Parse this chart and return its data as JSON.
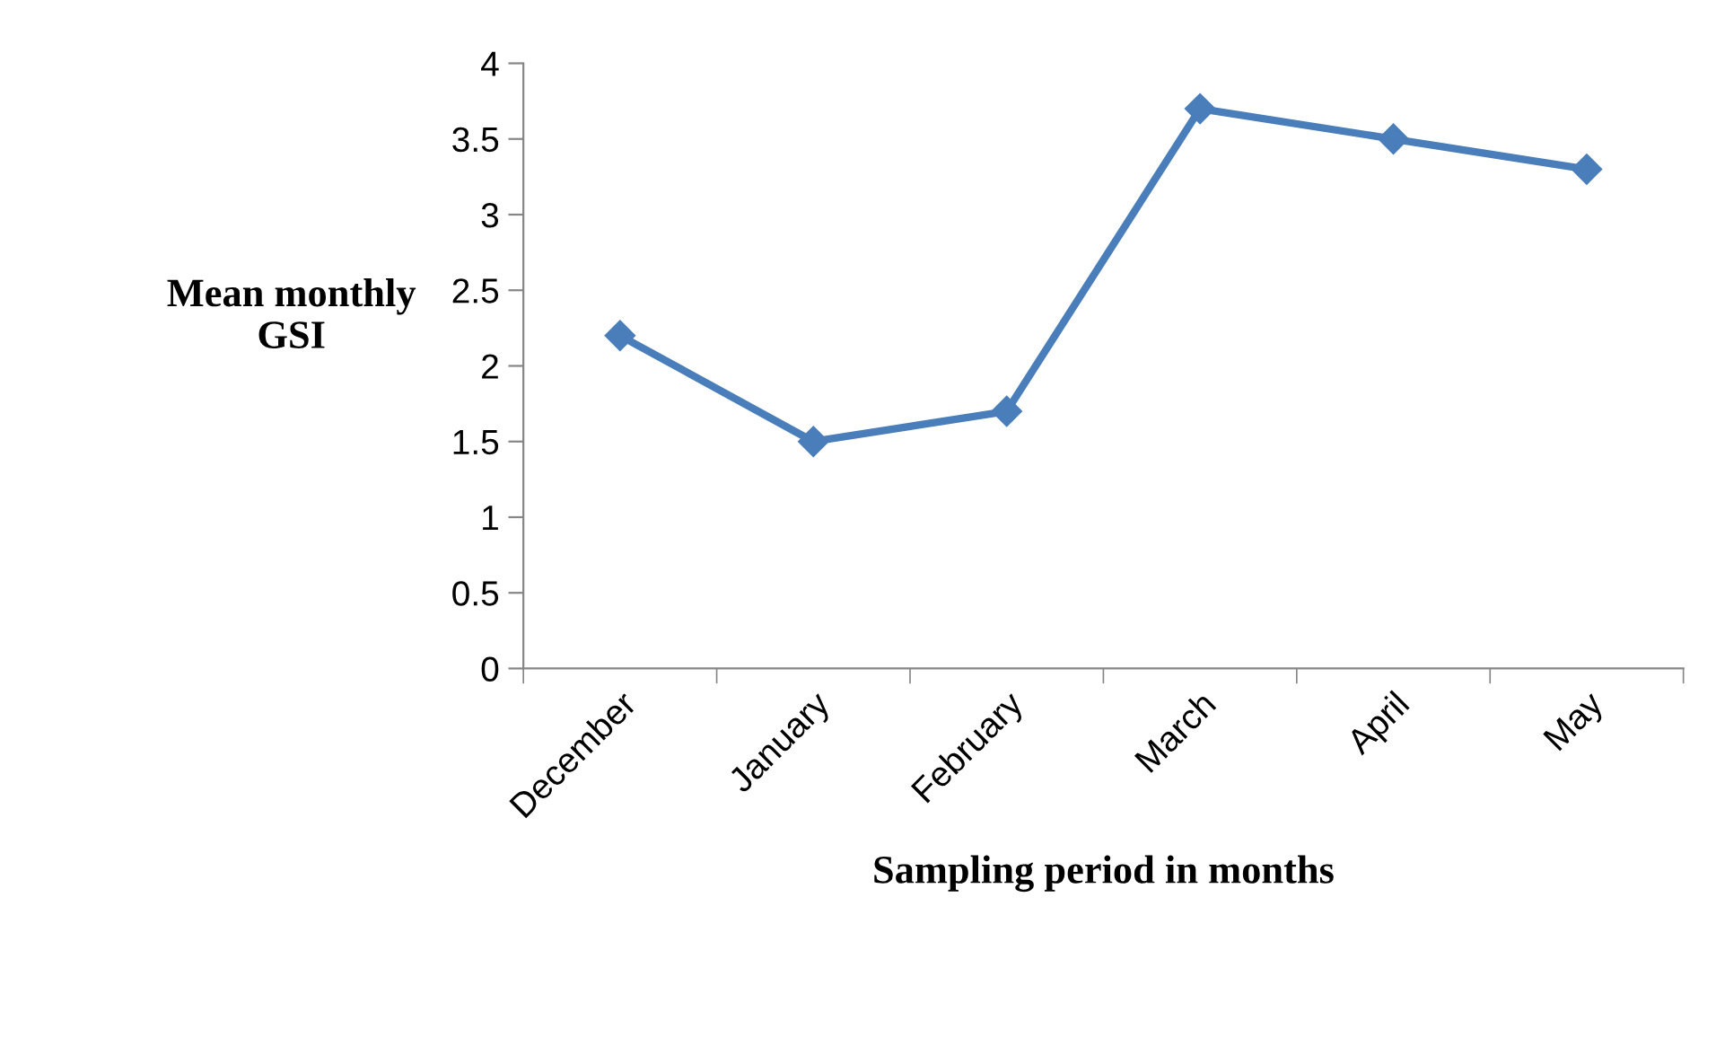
{
  "chart_data": {
    "type": "line",
    "xlabel": "Sampling period in months",
    "ylabel": "Mean monthly\nGSI",
    "categories": [
      "December",
      "January",
      "February",
      "March",
      "April",
      "May"
    ],
    "series": [
      {
        "color": "#4a7ebb",
        "values": [
          2.2,
          1.5,
          1.7,
          3.7,
          3.5,
          3.3
        ]
      }
    ],
    "ylim": [
      0,
      4
    ],
    "yticks": [
      0,
      0.5,
      1,
      1.5,
      2,
      2.5,
      3,
      3.5,
      4
    ],
    "marker": "diamond",
    "line_style": "solid",
    "grid": false,
    "legend": false
  }
}
